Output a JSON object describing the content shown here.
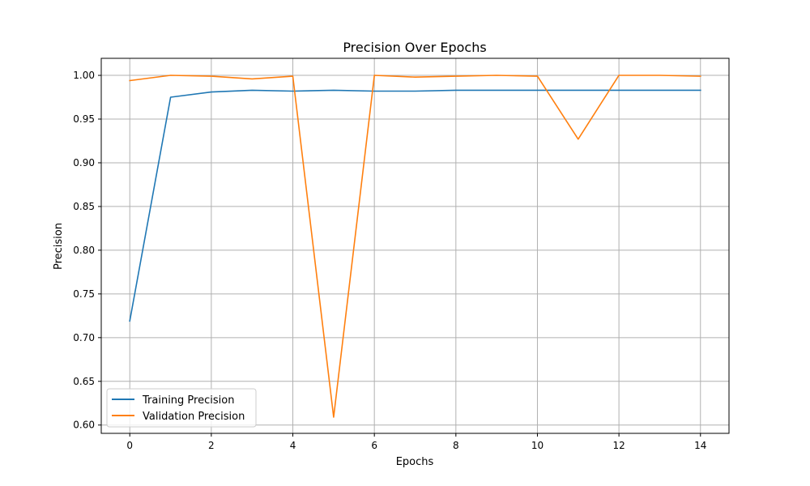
{
  "chart_data": {
    "type": "line",
    "title": "Precision Over Epochs",
    "xlabel": "Epochs",
    "ylabel": "Precision",
    "xlim": [
      -0.7,
      14.7
    ],
    "ylim": [
      0.5905,
      1.0195
    ],
    "xticks": [
      0,
      2,
      4,
      6,
      8,
      10,
      12,
      14
    ],
    "yticks": [
      0.6,
      0.65,
      0.7,
      0.75,
      0.8,
      0.85,
      0.9,
      0.95,
      1.0
    ],
    "ytick_labels": [
      "0.60",
      "0.65",
      "0.70",
      "0.75",
      "0.80",
      "0.85",
      "0.90",
      "0.95",
      "1.00"
    ],
    "grid": true,
    "legend_position": "lower-left",
    "x": [
      0,
      1,
      2,
      3,
      4,
      5,
      6,
      7,
      8,
      9,
      10,
      11,
      12,
      13,
      14
    ],
    "series": [
      {
        "name": "Training Precision",
        "color": "#1f77b4",
        "values": [
          0.719,
          0.975,
          0.981,
          0.983,
          0.982,
          0.983,
          0.982,
          0.982,
          0.983,
          0.983,
          0.983,
          0.983,
          0.983,
          0.983,
          0.983
        ]
      },
      {
        "name": "Validation Precision",
        "color": "#ff7f0e",
        "values": [
          0.994,
          1.0,
          0.999,
          0.996,
          0.999,
          0.609,
          1.0,
          0.998,
          0.999,
          1.0,
          0.999,
          0.927,
          1.0,
          1.0,
          0.999
        ]
      }
    ]
  }
}
